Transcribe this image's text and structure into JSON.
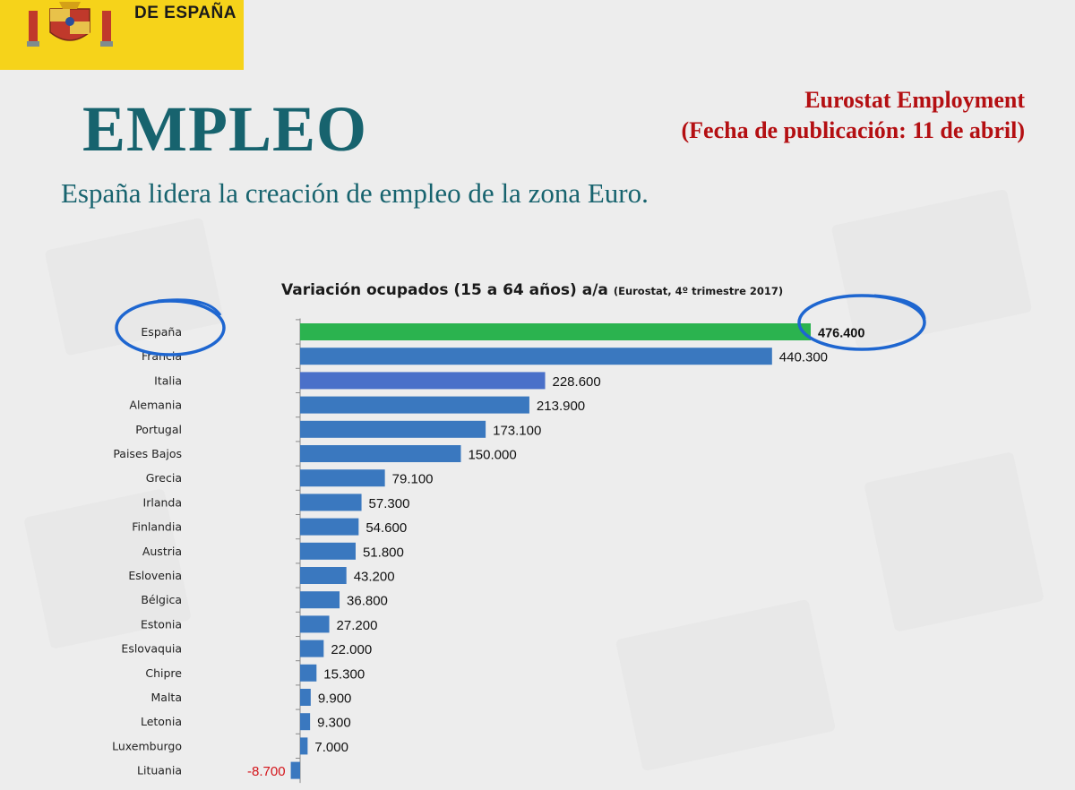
{
  "header": {
    "agency_text": "DE ESPAÑA"
  },
  "title": "EMPLEO",
  "source": {
    "line1": "Eurostat Employment",
    "line2": "(Fecha de publicación: 11 de abril)"
  },
  "subtitle": "España lidera la creación de empleo de la zona Euro.",
  "colors": {
    "title": "#17636e",
    "source": "#b40f12",
    "bar_default": "#3a78bf",
    "bar_highlight": "#2bb34f",
    "bar_italia": "#4a70c9",
    "negative_label": "#d3141a",
    "annotation_circle": "#1e66d0",
    "header_yellow": "#f6d31a"
  },
  "chart_data": {
    "type": "bar",
    "orientation": "horizontal",
    "title_main": "Variación ocupados (15 a 64 años) a/a",
    "title_note": "(Eurostat, 4º trimestre 2017)",
    "categories": [
      "España",
      "Francia",
      "Italia",
      "Alemania",
      "Portugal",
      "Paises Bajos",
      "Grecia",
      "Irlanda",
      "Finlandia",
      "Austria",
      "Eslovenia",
      "Bélgica",
      "Estonia",
      "Eslovaquia",
      "Chipre",
      "Malta",
      "Letonia",
      "Luxemburgo",
      "Lituania"
    ],
    "values": [
      476400,
      440300,
      228600,
      213900,
      173100,
      150000,
      79100,
      57300,
      54600,
      51800,
      43200,
      36800,
      27200,
      22000,
      15300,
      9900,
      9300,
      7000,
      -8700
    ],
    "labels": [
      "476.400",
      "440.300",
      "228.600",
      "213.900",
      "173.100",
      "150.000",
      "79.100",
      "57.300",
      "54.600",
      "51.800",
      "43.200",
      "36.800",
      "27.200",
      "22.000",
      "15.300",
      "9.900",
      "9.300",
      "7.000",
      "-8.700"
    ],
    "highlight": "España",
    "annotations": [
      "circle around España label",
      "circle around 476.400 value"
    ],
    "grid": false
  }
}
